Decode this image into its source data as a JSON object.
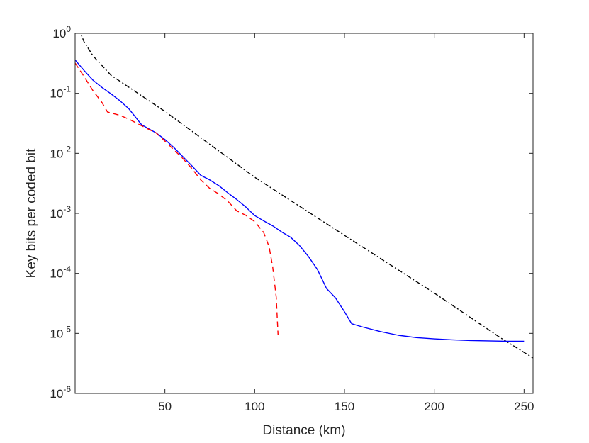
{
  "chart_data": {
    "type": "line",
    "xlabel": "Distance (km)",
    "ylabel": "Key bits per coded bit",
    "xlim": [
      0,
      255
    ],
    "ylim": [
      1e-06,
      1
    ],
    "yscale": "log",
    "grid": false,
    "legend": "none",
    "x_ticks": [
      50,
      100,
      150,
      200,
      250
    ],
    "y_ticks": [
      {
        "value": 1,
        "base": "10",
        "exp": "0"
      },
      {
        "value": 0.1,
        "base": "10",
        "exp": "-1"
      },
      {
        "value": 0.01,
        "base": "10",
        "exp": "-2"
      },
      {
        "value": 0.001,
        "base": "10",
        "exp": "-3"
      },
      {
        "value": 0.0001,
        "base": "10",
        "exp": "-4"
      },
      {
        "value": 1e-05,
        "base": "10",
        "exp": "-5"
      },
      {
        "value": 1e-06,
        "base": "10",
        "exp": "-6"
      }
    ],
    "series": [
      {
        "style": "dashdot",
        "color": "#000000",
        "points": [
          [
            2,
            1.2
          ],
          [
            5,
            0.72
          ],
          [
            10,
            0.42
          ],
          [
            20,
            0.2
          ],
          [
            50,
            0.05
          ],
          [
            100,
            0.004
          ],
          [
            150,
            0.00043
          ],
          [
            200,
            4.7e-05
          ],
          [
            237,
            8.4e-06
          ],
          [
            255,
            3.9e-06
          ]
        ]
      },
      {
        "style": "solid",
        "color": "#0000ff",
        "points": [
          [
            0,
            0.36
          ],
          [
            5,
            0.24
          ],
          [
            10,
            0.165
          ],
          [
            15,
            0.125
          ],
          [
            20,
            0.098
          ],
          [
            25,
            0.075
          ],
          [
            30,
            0.055
          ],
          [
            37,
            0.03
          ],
          [
            45,
            0.022
          ],
          [
            50,
            0.017
          ],
          [
            55,
            0.0125
          ],
          [
            60,
            0.0088
          ],
          [
            65,
            0.0062
          ],
          [
            70,
            0.0043
          ],
          [
            75,
            0.0036
          ],
          [
            80,
            0.0029
          ],
          [
            85,
            0.0022
          ],
          [
            90,
            0.0017
          ],
          [
            95,
            0.00128
          ],
          [
            100,
            0.00092
          ],
          [
            105,
            0.00075
          ],
          [
            110,
            0.00062
          ],
          [
            115,
            0.00049
          ],
          [
            120,
            0.0004
          ],
          [
            125,
            0.00029
          ],
          [
            130,
            0.00019
          ],
          [
            135,
            0.000115
          ],
          [
            140,
            5.6e-05
          ],
          [
            145,
            3.9e-05
          ],
          [
            150,
            2.3e-05
          ],
          [
            154,
            1.45e-05
          ],
          [
            160,
            1.28e-05
          ],
          [
            170,
            1.07e-05
          ],
          [
            180,
            9.3e-06
          ],
          [
            190,
            8.5e-06
          ],
          [
            200,
            8.1e-06
          ],
          [
            210,
            7.8e-06
          ],
          [
            220,
            7.6e-06
          ],
          [
            230,
            7.5e-06
          ],
          [
            240,
            7.4e-06
          ],
          [
            250,
            7.4e-06
          ]
        ]
      },
      {
        "style": "dashed",
        "color": "#ff0000",
        "points": [
          [
            0,
            0.32
          ],
          [
            5,
            0.19
          ],
          [
            10,
            0.11
          ],
          [
            15,
            0.07
          ],
          [
            18,
            0.049
          ],
          [
            25,
            0.043
          ],
          [
            30,
            0.037
          ],
          [
            40,
            0.026
          ],
          [
            45,
            0.022
          ],
          [
            50,
            0.016
          ],
          [
            55,
            0.0115
          ],
          [
            60,
            0.0082
          ],
          [
            65,
            0.0056
          ],
          [
            70,
            0.0036
          ],
          [
            75,
            0.0026
          ],
          [
            80,
            0.0021
          ],
          [
            85,
            0.0016
          ],
          [
            90,
            0.0011
          ],
          [
            95,
            0.00093
          ],
          [
            100,
            0.00073
          ],
          [
            105,
            0.00048
          ],
          [
            108,
            0.00028
          ],
          [
            110,
            0.00013
          ],
          [
            112,
            4e-05
          ],
          [
            113,
            9.5e-06
          ]
        ]
      }
    ]
  }
}
